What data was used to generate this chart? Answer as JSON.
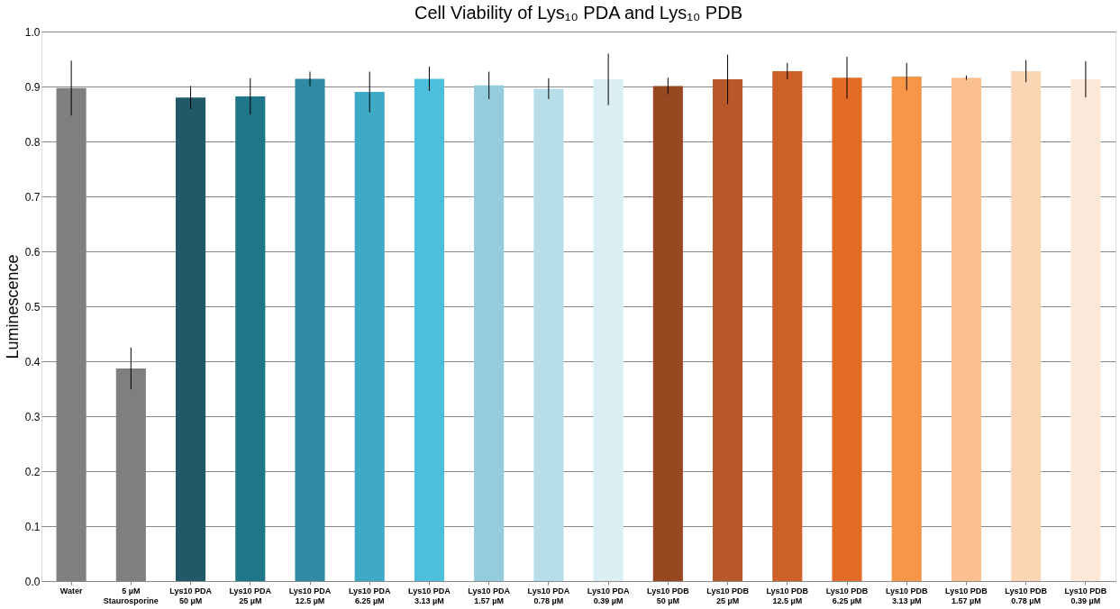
{
  "chart_data": {
    "type": "bar",
    "title": "Cell Viability of Lys₁₀ PDA and Lys₁₀ PDB",
    "ylabel": "Luminescence",
    "categories": [
      "Water",
      "5 µM\nStaurosporine",
      "Lys10 PDA\n50 µM",
      "Lys10 PDA\n25 µM",
      "Lys10 PDA\n12.5 µM",
      "Lys10 PDA\n6.25 µM",
      "Lys10 PDA\n3.13 µM",
      "Lys10 PDA\n1.57 µM",
      "Lys10 PDA\n0.78 µM",
      "Lys10 PDA\n0.39 µM",
      "Lys10 PDB\n50 µM",
      "Lys10 PDB\n25 µM",
      "Lys10 PDB\n12.5 µM",
      "Lys10 PDB\n6.25 µM",
      "Lys10 PDB\n3.13 µM",
      "Lys10 PDB\n1.57 µM",
      "Lys10 PDB\n0.78 µM",
      "Lys10 PDB\n0.39 µM"
    ],
    "values": [
      0.897,
      0.387,
      0.88,
      0.882,
      0.914,
      0.89,
      0.914,
      0.902,
      0.896,
      0.913,
      0.901,
      0.913,
      0.928,
      0.916,
      0.918,
      0.916,
      0.928,
      0.913
    ],
    "errors": [
      0.05,
      0.038,
      0.021,
      0.033,
      0.013,
      0.037,
      0.022,
      0.025,
      0.019,
      0.047,
      0.015,
      0.045,
      0.015,
      0.038,
      0.025,
      0.004,
      0.02,
      0.033
    ],
    "colors": [
      "#7f7f7f",
      "#7f7f7f",
      "#215968",
      "#1f7689",
      "#2e8ba3",
      "#3faac6",
      "#4bbfdd",
      "#93cddd",
      "#b7dee8",
      "#dbeef4",
      "#984821",
      "#b8572a",
      "#ce6128",
      "#e26b27",
      "#f79646",
      "#fac090",
      "#fcd5b5",
      "#fde9d9"
    ],
    "ylim": [
      0,
      1
    ],
    "yticks": [
      {
        "value": 0,
        "label": "0.0"
      },
      {
        "value": 0.1,
        "label": "0.1"
      },
      {
        "value": 0.2,
        "label": "0.2"
      },
      {
        "value": 0.3,
        "label": "0.3"
      },
      {
        "value": 0.4,
        "label": "0.4"
      },
      {
        "value": 0.5,
        "label": "0.5"
      },
      {
        "value": 0.6,
        "label": "0.6"
      },
      {
        "value": 0.7,
        "label": "0.7"
      },
      {
        "value": 0.8,
        "label": "0.8"
      },
      {
        "value": 0.9,
        "label": "0.9"
      },
      {
        "value": 1,
        "label": "1.0"
      }
    ],
    "grid": "y"
  }
}
